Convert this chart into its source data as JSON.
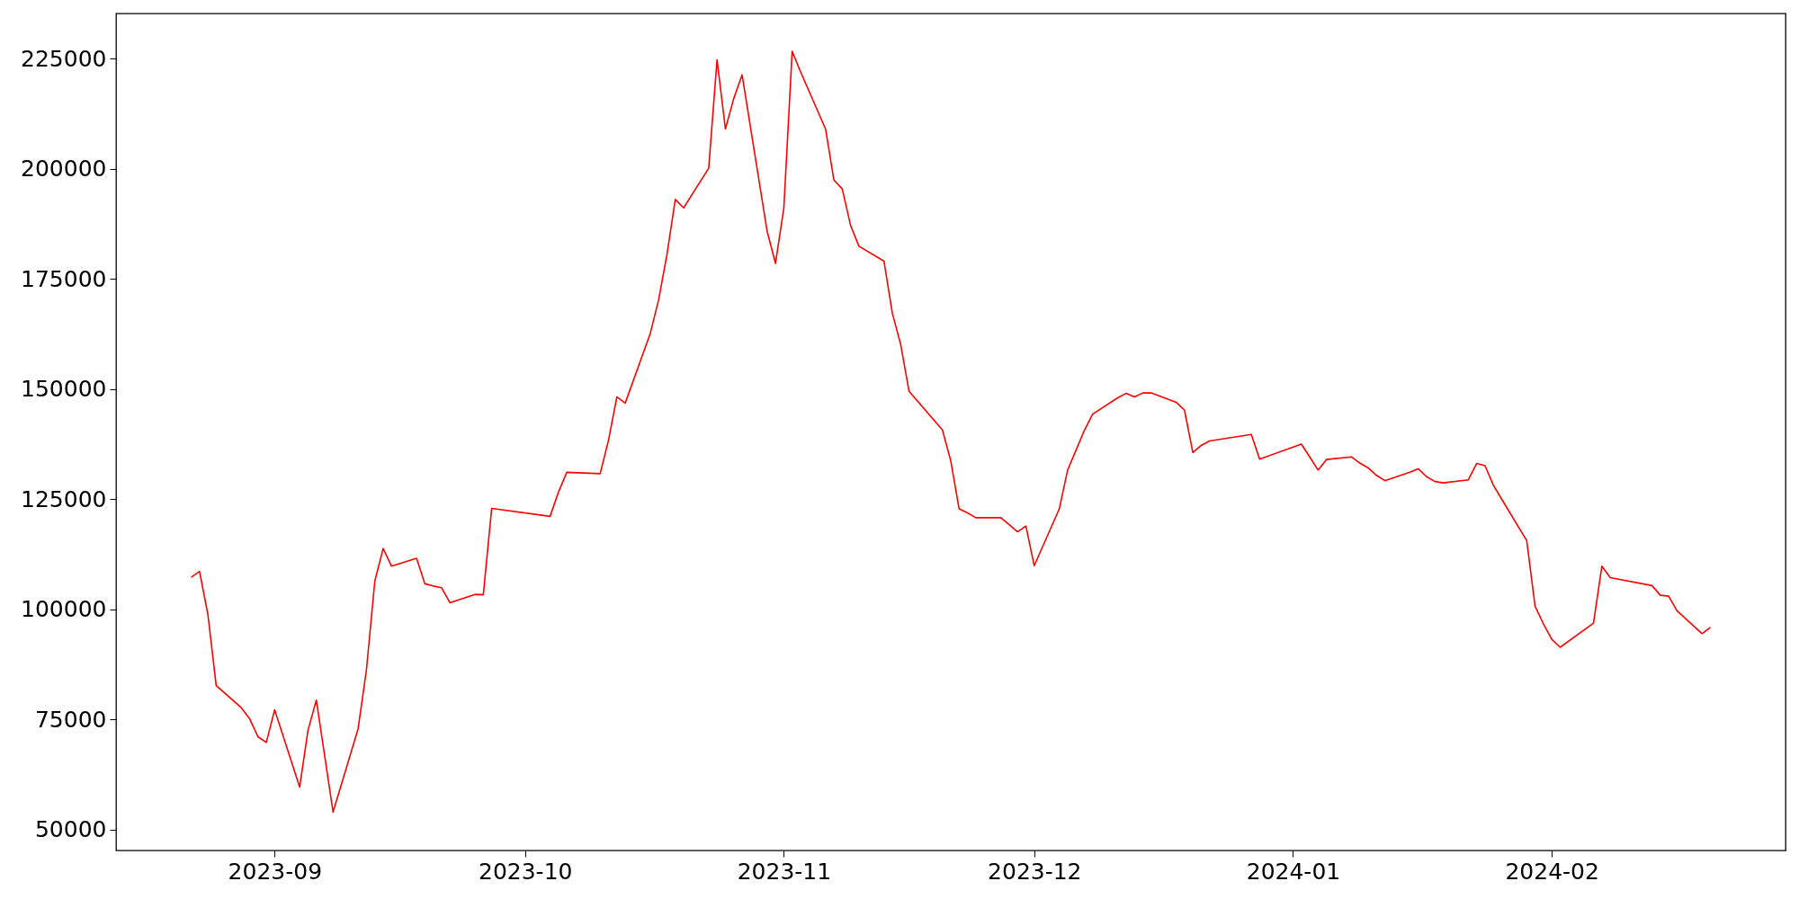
{
  "chart_data": {
    "type": "line",
    "x": [
      "2023-08-22",
      "2023-08-23",
      "2023-08-24",
      "2023-08-25",
      "2023-08-28",
      "2023-08-29",
      "2023-08-30",
      "2023-08-31",
      "2023-09-01",
      "2023-09-04",
      "2023-09-05",
      "2023-09-06",
      "2023-09-08",
      "2023-09-11",
      "2023-09-12",
      "2023-09-13",
      "2023-09-14",
      "2023-09-15",
      "2023-09-18",
      "2023-09-19",
      "2023-09-20",
      "2023-09-21",
      "2023-09-22",
      "2023-09-25",
      "2023-09-26",
      "2023-09-27",
      "2023-10-04",
      "2023-10-05",
      "2023-10-06",
      "2023-10-10",
      "2023-10-11",
      "2023-10-12",
      "2023-10-13",
      "2023-10-16",
      "2023-10-17",
      "2023-10-18",
      "2023-10-19",
      "2023-10-20",
      "2023-10-23",
      "2023-10-24",
      "2023-10-25",
      "2023-10-26",
      "2023-10-27",
      "2023-10-30",
      "2023-10-31",
      "2023-11-01",
      "2023-11-02",
      "2023-11-03",
      "2023-11-06",
      "2023-11-07",
      "2023-11-08",
      "2023-11-09",
      "2023-11-10",
      "2023-11-13",
      "2023-11-14",
      "2023-11-15",
      "2023-11-16",
      "2023-11-20",
      "2023-11-21",
      "2023-11-22",
      "2023-11-23",
      "2023-11-24",
      "2023-11-27",
      "2023-11-28",
      "2023-11-29",
      "2023-11-30",
      "2023-12-01",
      "2023-12-04",
      "2023-12-05",
      "2023-12-06",
      "2023-12-07",
      "2023-12-08",
      "2023-12-11",
      "2023-12-12",
      "2023-12-13",
      "2023-12-14",
      "2023-12-15",
      "2023-12-18",
      "2023-12-19",
      "2023-12-20",
      "2023-12-21",
      "2023-12-22",
      "2023-12-27",
      "2023-12-28",
      "2024-01-02",
      "2024-01-03",
      "2024-01-04",
      "2024-01-05",
      "2024-01-08",
      "2024-01-09",
      "2024-01-10",
      "2024-01-11",
      "2024-01-12",
      "2024-01-15",
      "2024-01-16",
      "2024-01-17",
      "2024-01-18",
      "2024-01-19",
      "2024-01-22",
      "2024-01-23",
      "2024-01-24",
      "2024-01-25",
      "2024-01-26",
      "2024-01-29",
      "2024-01-30",
      "2024-01-31",
      "2024-02-01",
      "2024-02-02",
      "2024-02-06",
      "2024-02-07",
      "2024-02-08",
      "2024-02-13",
      "2024-02-14",
      "2024-02-15",
      "2024-02-16",
      "2024-02-19",
      "2024-02-20"
    ],
    "series": [
      {
        "color": "#ff0000",
        "values": [
          107300,
          108600,
          98900,
          82700,
          77700,
          75200,
          71100,
          69800,
          77200,
          59700,
          72600,
          79400,
          54000,
          72900,
          86300,
          106400,
          113800,
          109800,
          111600,
          105800,
          105300,
          104900,
          101500,
          103400,
          103300,
          122900,
          121100,
          126600,
          131100,
          130800,
          138400,
          148200,
          146800,
          162600,
          170200,
          180500,
          193000,
          191100,
          200100,
          224700,
          209000,
          215900,
          221300,
          185800,
          178500,
          191000,
          226600,
          222000,
          209000,
          197400,
          195400,
          187100,
          182400,
          179000,
          167200,
          160100,
          149500,
          140700,
          133700,
          122800,
          121900,
          120800,
          120800,
          119200,
          117600,
          118900,
          109900,
          122800,
          131600,
          136100,
          140600,
          144300,
          148000,
          149000,
          148200,
          149100,
          149100,
          147000,
          145200,
          135600,
          137200,
          138200,
          139700,
          134100,
          137500,
          134600,
          131600,
          134000,
          134600,
          133200,
          132100,
          130400,
          129200,
          131100,
          131900,
          130100,
          129000,
          128700,
          129400,
          133100,
          132600,
          128200,
          125000,
          115600,
          100700,
          96700,
          93200,
          91400,
          96900,
          109800,
          107200,
          105400,
          103200,
          103000,
          99700,
          94500,
          95900
        ]
      }
    ],
    "xlim": [
      "2023-08-13",
      "2024-02-29"
    ],
    "xticks": [
      {
        "value": "2023-09",
        "label": "2023-09"
      },
      {
        "value": "2023-10",
        "label": "2023-10"
      },
      {
        "value": "2023-11",
        "label": "2023-11"
      },
      {
        "value": "2023-12",
        "label": "2023-12"
      },
      {
        "value": "2024-01",
        "label": "2024-01"
      },
      {
        "value": "2024-02",
        "label": "2024-02"
      }
    ],
    "ylim": [
      45300,
      235200
    ],
    "yticks": [
      50000,
      75000,
      100000,
      125000,
      150000,
      175000,
      200000,
      225000
    ],
    "grid": false,
    "marker": "none",
    "line_style": "solid"
  }
}
